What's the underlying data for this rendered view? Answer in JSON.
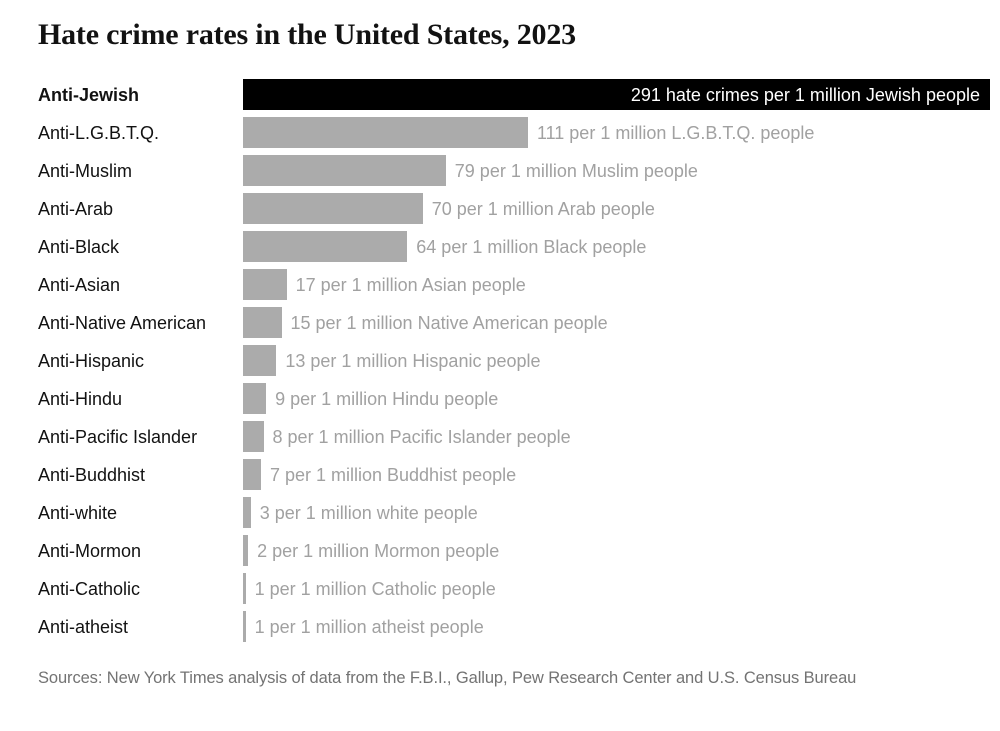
{
  "title": "Hate crime rates in the United States, 2023",
  "source_note": "Sources: New York Times analysis of data from the F.B.I., Gallup, Pew Research Center and U.S. Census Bureau",
  "colors": {
    "highlight_bar": "#000000",
    "bar": "#ababab",
    "value_text": "#a1a1a1",
    "label_text": "#121212",
    "highlight_value_text": "#ffffff",
    "source_text": "#737373",
    "background": "#ffffff"
  },
  "chart_data": {
    "type": "bar",
    "orientation": "horizontal",
    "title": "Hate crime rates in the United States, 2023",
    "xlabel": "",
    "ylabel": "",
    "xlim": [
      0,
      291
    ],
    "grid": false,
    "legend": false,
    "highlight_index": 0,
    "max_value": 291,
    "unit": "hate crimes per 1 million people of each group",
    "categories": [
      "Anti-Jewish",
      "Anti-L.G.B.T.Q.",
      "Anti-Muslim",
      "Anti-Arab",
      "Anti-Black",
      "Anti-Asian",
      "Anti-Native American",
      "Anti-Hispanic",
      "Anti-Hindu",
      "Anti-Pacific Islander",
      "Anti-Buddhist",
      "Anti-white",
      "Anti-Mormon",
      "Anti-Catholic",
      "Anti-atheist"
    ],
    "values": [
      291,
      111,
      79,
      70,
      64,
      17,
      15,
      13,
      9,
      8,
      7,
      3,
      2,
      1,
      1
    ],
    "bar_labels": [
      "291 hate crimes per 1 million Jewish people",
      "111 per 1 million L.G.B.T.Q. people",
      "79 per 1 million Muslim people",
      "70 per 1 million Arab people",
      "64 per 1 million Black people",
      "17 per 1 million Asian people",
      "15 per 1 million Native American people",
      "13 per 1 million Hispanic people",
      "9 per 1 million Hindu people",
      "8 per 1 million Pacific Islander people",
      "7 per 1 million Buddhist people",
      "3 per 1 million white people",
      "2 per 1 million Mormon people",
      "1 per 1 million Catholic people",
      "1 per 1 million atheist people"
    ]
  }
}
